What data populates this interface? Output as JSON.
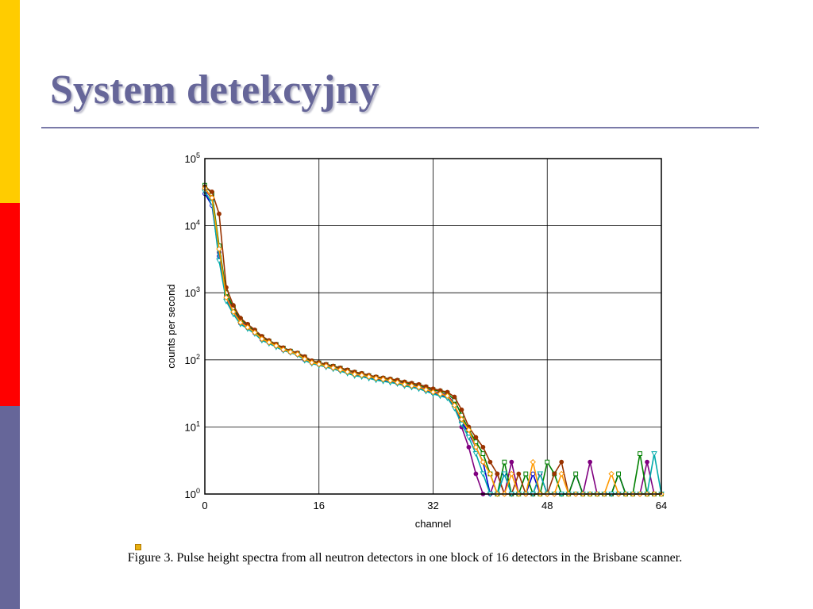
{
  "slide": {
    "title": "System detekcyjny",
    "caption": "Figure 3. Pulse height spectra from all neutron detectors in one block of 16 detectors in the Brisbane scanner.",
    "colors": {
      "accent": "#666699",
      "stripe_top": "#ffcc00",
      "stripe_middle": "#ff0000",
      "stripe_bottom": "#666699"
    }
  },
  "chart_data": {
    "type": "line",
    "title": "",
    "xlabel": "channel",
    "ylabel": "counts per second",
    "y_scale": "log",
    "xlim": [
      0,
      64
    ],
    "ylim": [
      1,
      100000
    ],
    "x_ticks": [
      0,
      16,
      32,
      48,
      64
    ],
    "y_ticks": [
      {
        "base": "10",
        "exp": "0"
      },
      {
        "base": "10",
        "exp": "1"
      },
      {
        "base": "10",
        "exp": "2"
      },
      {
        "base": "10",
        "exp": "3"
      },
      {
        "base": "10",
        "exp": "4"
      },
      {
        "base": "10",
        "exp": "5"
      }
    ],
    "grid": true,
    "legend": "none",
    "series": [
      {
        "color": "#0000cc",
        "marker": "circle-open",
        "values": [
          30000,
          20000,
          3500,
          800,
          500,
          350,
          300,
          250,
          200,
          180,
          160,
          140,
          130,
          120,
          100,
          90,
          85,
          80,
          75,
          70,
          65,
          60,
          58,
          55,
          52,
          50,
          48,
          45,
          42,
          40,
          38,
          35,
          32,
          30,
          28,
          20,
          12,
          8,
          5,
          3,
          1,
          1,
          2,
          1,
          1,
          1,
          2,
          1,
          1,
          1,
          1,
          1,
          2,
          1,
          1,
          1,
          1,
          1,
          2,
          1,
          1,
          1,
          1,
          1,
          1
        ]
      },
      {
        "color": "#800080",
        "marker": "circle-filled",
        "values": [
          35000,
          25000,
          4000,
          900,
          550,
          380,
          310,
          260,
          210,
          185,
          165,
          145,
          132,
          122,
          105,
          92,
          87,
          82,
          77,
          72,
          67,
          62,
          60,
          57,
          54,
          52,
          50,
          47,
          44,
          42,
          40,
          37,
          34,
          32,
          30,
          22,
          10,
          5,
          2,
          1,
          1,
          2,
          1,
          3,
          1,
          1,
          1,
          2,
          1,
          1,
          1,
          1,
          1,
          1,
          3,
          1,
          1,
          1,
          1,
          1,
          1,
          1,
          3,
          1,
          1
        ]
      },
      {
        "color": "#008000",
        "marker": "square-open",
        "values": [
          40000,
          30000,
          5000,
          1000,
          600,
          400,
          330,
          270,
          220,
          190,
          170,
          150,
          135,
          125,
          110,
          95,
          90,
          85,
          80,
          75,
          70,
          65,
          62,
          58,
          55,
          53,
          51,
          49,
          46,
          44,
          42,
          39,
          36,
          34,
          32,
          25,
          15,
          9,
          6,
          4,
          2,
          1,
          3,
          1,
          1,
          2,
          1,
          1,
          3,
          2,
          1,
          1,
          2,
          1,
          1,
          1,
          1,
          1,
          2,
          1,
          1,
          4,
          1,
          1,
          1
        ]
      },
      {
        "color": "#993300",
        "marker": "circle-filled",
        "values": [
          38000,
          32000,
          15000,
          1200,
          650,
          420,
          340,
          280,
          225,
          195,
          172,
          152,
          137,
          127,
          112,
          97,
          91,
          86,
          81,
          76,
          71,
          66,
          63,
          59,
          56,
          54,
          52,
          50,
          47,
          45,
          43,
          40,
          37,
          35,
          33,
          28,
          18,
          10,
          7,
          5,
          3,
          2,
          1,
          1,
          2,
          1,
          1,
          1,
          1,
          2,
          3,
          1,
          1,
          1,
          1,
          1,
          1,
          1,
          1,
          1,
          1,
          1,
          1,
          1,
          1
        ]
      },
      {
        "color": "#00aaaa",
        "marker": "triangle-down",
        "values": [
          32000,
          22000,
          3000,
          750,
          480,
          340,
          290,
          245,
          195,
          175,
          155,
          138,
          128,
          118,
          98,
          88,
          83,
          78,
          73,
          68,
          63,
          58,
          56,
          53,
          50,
          48,
          46,
          44,
          41,
          39,
          37,
          34,
          31,
          29,
          27,
          19,
          11,
          7,
          4,
          2,
          1,
          1,
          2,
          1,
          1,
          1,
          1,
          2,
          1,
          1,
          1,
          1,
          1,
          1,
          1,
          1,
          1,
          1,
          1,
          1,
          1,
          1,
          1,
          4,
          1
        ]
      },
      {
        "color": "#ff9900",
        "marker": "diamond-open",
        "values": [
          36000,
          26000,
          4500,
          850,
          520,
          360,
          305,
          255,
          205,
          182,
          162,
          142,
          131,
          121,
          103,
          91,
          86,
          81,
          76,
          71,
          66,
          61,
          59,
          56,
          53,
          51,
          49,
          46,
          43,
          41,
          39,
          36,
          33,
          31,
          29,
          21,
          13,
          9,
          5,
          3,
          2,
          1,
          1,
          2,
          1,
          1,
          3,
          1,
          1,
          1,
          2,
          1,
          1,
          1,
          1,
          1,
          1,
          2,
          1,
          1,
          1,
          1,
          1,
          1,
          1
        ]
      }
    ]
  }
}
